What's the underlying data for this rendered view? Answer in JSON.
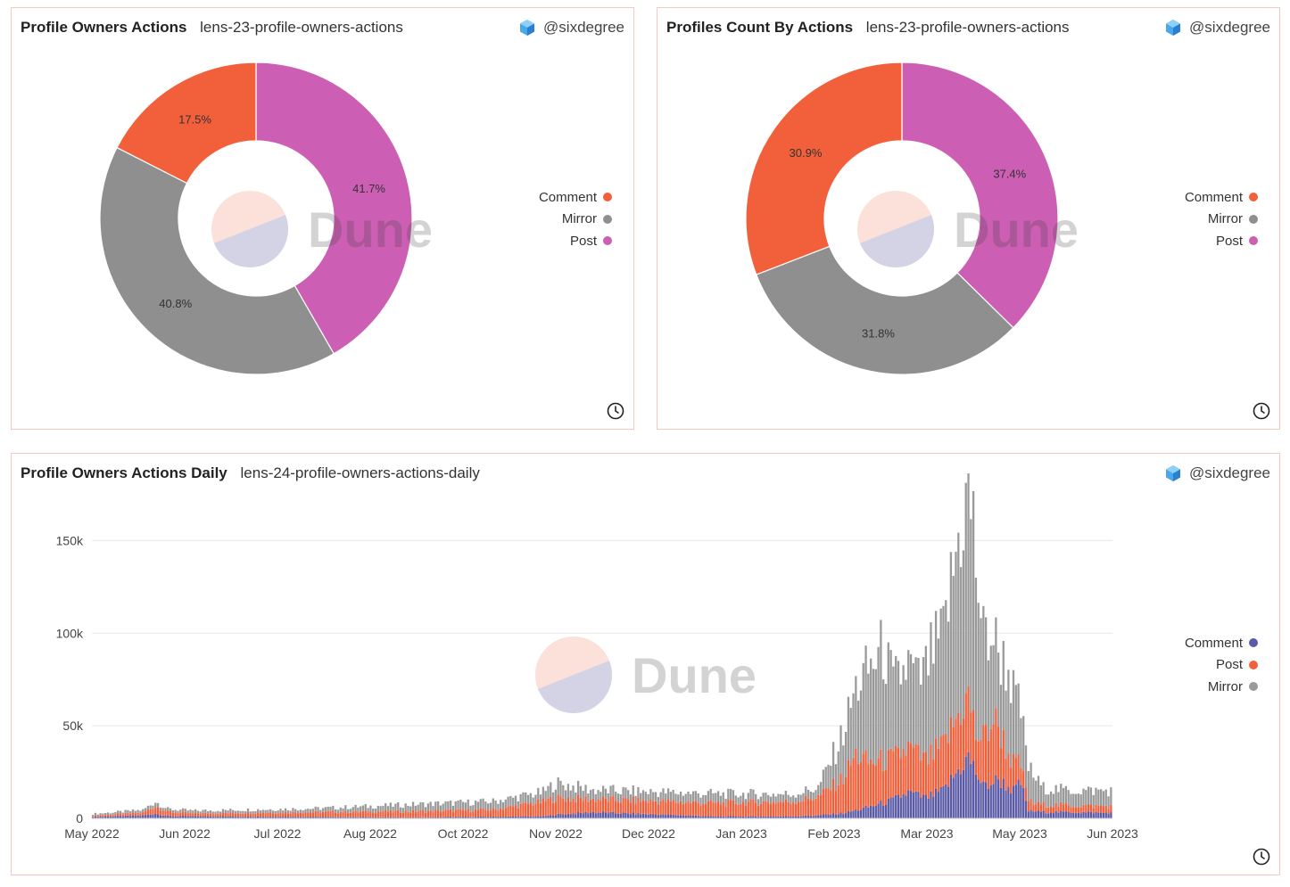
{
  "brand": {
    "author": "@sixdegree",
    "watermark": "Dune"
  },
  "colors": {
    "comment": "#f2603b",
    "mirror": "#8f8f8f",
    "post": "#cc5fb3",
    "daily_comment": "#5a5aa6",
    "daily_post": "#f2603b",
    "daily_mirror": "#9a9a9a"
  },
  "panels": {
    "owners_actions": {
      "title": "Profile Owners Actions",
      "query": "lens-23-profile-owners-actions"
    },
    "profiles_count": {
      "title": "Profiles Count By Actions",
      "query": "lens-23-profile-owners-actions"
    },
    "daily": {
      "title": "Profile Owners Actions Daily",
      "query": "lens-24-profile-owners-actions-daily"
    }
  },
  "chart_data": [
    {
      "type": "pie",
      "title": "Profile Owners Actions",
      "donut": true,
      "slices": [
        {
          "name": "Post",
          "value": 41.7,
          "label": "41.7%"
        },
        {
          "name": "Mirror",
          "value": 40.8,
          "label": "40.8%"
        },
        {
          "name": "Comment",
          "value": 17.5,
          "label": "17.5%"
        }
      ],
      "legend": [
        "Comment",
        "Mirror",
        "Post"
      ],
      "legend_position": "right"
    },
    {
      "type": "pie",
      "title": "Profiles Count By Actions",
      "donut": true,
      "slices": [
        {
          "name": "Post",
          "value": 37.4,
          "label": "37.4%"
        },
        {
          "name": "Mirror",
          "value": 31.8,
          "label": "31.8%"
        },
        {
          "name": "Comment",
          "value": 30.9,
          "label": "30.9%"
        }
      ],
      "legend": [
        "Comment",
        "Mirror",
        "Post"
      ],
      "legend_position": "right"
    },
    {
      "type": "bar",
      "stacked": true,
      "title": "Profile Owners Actions Daily",
      "x_tick_labels": [
        "May 2022",
        "Jun 2022",
        "Jul 2022",
        "Aug 2022",
        "Oct 2022",
        "Nov 2022",
        "Dec 2022",
        "Jan 2023",
        "Feb 2023",
        "Mar 2023",
        "May 2023",
        "Jun 2023"
      ],
      "y_ticks": [
        0,
        50000,
        100000,
        150000
      ],
      "y_tick_labels": [
        "0",
        "50k",
        "100k",
        "150k"
      ],
      "ylim": [
        0,
        168000
      ],
      "legend": [
        "Comment",
        "Post",
        "Mirror"
      ],
      "legend_position": "right",
      "anchors_note": "approximate daily totals read off chart, interpolated between anchors (index = day from start, ~407 days)",
      "days": 408,
      "anchors": {
        "comment": [
          [
            0,
            800
          ],
          [
            20,
            1500
          ],
          [
            25,
            2600
          ],
          [
            30,
            1200
          ],
          [
            100,
            700
          ],
          [
            130,
            500
          ],
          [
            180,
            1100
          ],
          [
            185,
            2000
          ],
          [
            200,
            3300
          ],
          [
            250,
            1000
          ],
          [
            280,
            1100
          ],
          [
            290,
            1600
          ],
          [
            300,
            2800
          ],
          [
            310,
            6000
          ],
          [
            320,
            10000
          ],
          [
            326,
            14000
          ],
          [
            333,
            11000
          ],
          [
            340,
            15000
          ],
          [
            346,
            26000
          ],
          [
            350,
            33000
          ],
          [
            356,
            17000
          ],
          [
            362,
            21000
          ],
          [
            368,
            15000
          ],
          [
            371,
            19000
          ],
          [
            374,
            4000
          ],
          [
            380,
            3500
          ],
          [
            407,
            3000
          ]
        ],
        "post": [
          [
            0,
            600
          ],
          [
            20,
            1500
          ],
          [
            25,
            4000
          ],
          [
            30,
            2400
          ],
          [
            40,
            1500
          ],
          [
            90,
            2600
          ],
          [
            130,
            3300
          ],
          [
            160,
            3800
          ],
          [
            180,
            8000
          ],
          [
            185,
            9000
          ],
          [
            200,
            7000
          ],
          [
            250,
            7200
          ],
          [
            280,
            8000
          ],
          [
            290,
            10000
          ],
          [
            300,
            19000
          ],
          [
            305,
            30000
          ],
          [
            310,
            24000
          ],
          [
            320,
            22000
          ],
          [
            326,
            24000
          ],
          [
            333,
            20000
          ],
          [
            340,
            24000
          ],
          [
            346,
            30000
          ],
          [
            350,
            33000
          ],
          [
            353,
            20000
          ],
          [
            360,
            34000
          ],
          [
            366,
            18000
          ],
          [
            372,
            8000
          ],
          [
            376,
            4000
          ],
          [
            407,
            3500
          ]
        ],
        "mirror": [
          [
            0,
            1000
          ],
          [
            20,
            1500
          ],
          [
            25,
            2500
          ],
          [
            30,
            1400
          ],
          [
            90,
            2000
          ],
          [
            130,
            3800
          ],
          [
            160,
            4500
          ],
          [
            180,
            5000
          ],
          [
            185,
            8000
          ],
          [
            200,
            5000
          ],
          [
            250,
            5000
          ],
          [
            280,
            4000
          ],
          [
            290,
            5000
          ],
          [
            298,
            20000
          ],
          [
            305,
            36000
          ],
          [
            310,
            50000
          ],
          [
            316,
            60000
          ],
          [
            320,
            40000
          ],
          [
            326,
            45000
          ],
          [
            330,
            40000
          ],
          [
            335,
            55000
          ],
          [
            340,
            60000
          ],
          [
            346,
            95000
          ],
          [
            350,
            110000
          ],
          [
            352,
            105000
          ],
          [
            356,
            55000
          ],
          [
            362,
            40000
          ],
          [
            366,
            45000
          ],
          [
            370,
            32000
          ],
          [
            374,
            18000
          ],
          [
            380,
            9000
          ],
          [
            390,
            8000
          ],
          [
            407,
            8500
          ]
        ]
      }
    }
  ]
}
